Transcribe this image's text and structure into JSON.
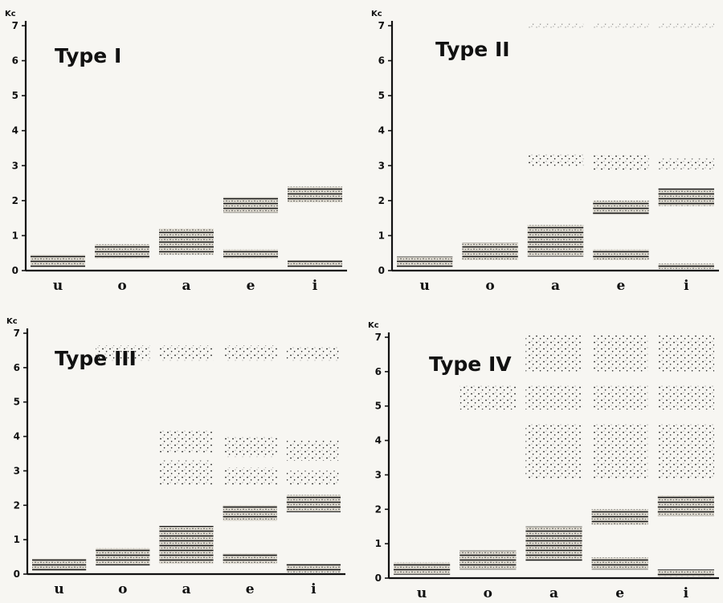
{
  "chart_data": [
    {
      "type": "bar",
      "chart_kind": "floating-range",
      "title": "Type I",
      "unit_label": "Kc",
      "categories": [
        "u",
        "o",
        "a",
        "e",
        "i"
      ],
      "ylim": [
        0,
        7
      ],
      "y_ticks": [
        "0",
        "1",
        "2",
        "3",
        "4",
        "5",
        "6",
        "7"
      ],
      "grid": false,
      "series": [
        {
          "values": [
            [
              0.1,
              0.45
            ],
            [
              0.35,
              0.75
            ],
            [
              0.45,
              1.2
            ],
            [
              0.35,
              0.6
            ],
            [
              0.1,
              0.3
            ]
          ],
          "style": "hatched"
        },
        {
          "values": [
            null,
            null,
            null,
            [
              1.65,
              2.1
            ],
            [
              1.95,
              2.4
            ]
          ],
          "style": "hatched"
        }
      ]
    },
    {
      "type": "bar",
      "chart_kind": "floating-range",
      "title": "Type II",
      "unit_label": "Kc",
      "categories": [
        "u",
        "o",
        "a",
        "e",
        "i"
      ],
      "ylim": [
        0,
        7
      ],
      "y_ticks": [
        "0",
        "1",
        "2",
        "3",
        "4",
        "5",
        "6",
        "7"
      ],
      "grid": false,
      "series": [
        {
          "values": [
            [
              0.1,
              0.4
            ],
            [
              0.3,
              0.8
            ],
            [
              0.4,
              1.3
            ],
            [
              0.3,
              0.6
            ],
            [
              0.05,
              0.2
            ]
          ],
          "style": "hatched"
        },
        {
          "values": [
            null,
            null,
            null,
            [
              1.6,
              2.0
            ],
            [
              1.85,
              2.35
            ]
          ],
          "style": "hatched"
        },
        {
          "values": [
            null,
            null,
            [
              2.95,
              3.35
            ],
            [
              2.85,
              3.3
            ],
            [
              2.9,
              3.2
            ]
          ],
          "style": "dotted"
        },
        {
          "values": [
            null,
            null,
            [
              6.95,
              7.05
            ],
            [
              6.95,
              7.05
            ],
            [
              6.95,
              7.05
            ]
          ],
          "style": "dotted"
        }
      ]
    },
    {
      "type": "bar",
      "chart_kind": "floating-range",
      "title": "Type III",
      "unit_label": "Kc",
      "categories": [
        "u",
        "o",
        "a",
        "e",
        "i"
      ],
      "ylim": [
        0,
        7
      ],
      "y_ticks": [
        "0",
        "1",
        "2",
        "3",
        "4",
        "5",
        "6",
        "7"
      ],
      "grid": false,
      "series": [
        {
          "values": [
            [
              0.1,
              0.45
            ],
            [
              0.25,
              0.75
            ],
            [
              0.3,
              1.4
            ],
            [
              0.3,
              0.6
            ],
            [
              0.05,
              0.3
            ]
          ],
          "style": "hatched"
        },
        {
          "values": [
            null,
            null,
            null,
            [
              1.55,
              2.0
            ],
            [
              1.8,
              2.3
            ]
          ],
          "style": "hatched"
        },
        {
          "values": [
            null,
            null,
            [
              2.6,
              3.3
            ],
            [
              2.6,
              3.1
            ],
            [
              2.6,
              3.0
            ]
          ],
          "style": "dotted"
        },
        {
          "values": [
            null,
            null,
            [
              3.5,
              4.2
            ],
            [
              3.4,
              4.0
            ],
            [
              3.3,
              3.9
            ]
          ],
          "style": "dotted"
        },
        {
          "values": [
            null,
            [
              6.2,
              6.65
            ],
            [
              6.2,
              6.65
            ],
            [
              6.2,
              6.65
            ],
            [
              6.2,
              6.6
            ]
          ],
          "style": "dotted"
        }
      ]
    },
    {
      "type": "bar",
      "chart_kind": "floating-range",
      "title": "Type IV",
      "unit_label": "Kc",
      "categories": [
        "u",
        "o",
        "a",
        "e",
        "i"
      ],
      "ylim": [
        0,
        7
      ],
      "y_ticks": [
        "0",
        "1",
        "2",
        "3",
        "4",
        "5",
        "6",
        "7"
      ],
      "grid": false,
      "series": [
        {
          "values": [
            [
              0.1,
              0.45
            ],
            [
              0.25,
              0.8
            ],
            [
              0.5,
              1.5
            ],
            [
              0.25,
              0.6
            ],
            [
              0.05,
              0.25
            ]
          ],
          "style": "hatched"
        },
        {
          "values": [
            null,
            null,
            null,
            [
              1.55,
              2.0
            ],
            [
              1.8,
              2.4
            ]
          ],
          "style": "hatched"
        },
        {
          "values": [
            null,
            null,
            [
              2.9,
              4.5
            ],
            [
              2.9,
              4.5
            ],
            [
              2.9,
              4.5
            ]
          ],
          "style": "dotted"
        },
        {
          "values": [
            null,
            [
              4.9,
              5.6
            ],
            [
              4.9,
              5.6
            ],
            [
              4.9,
              5.6
            ],
            [
              4.9,
              5.6
            ]
          ],
          "style": "dotted"
        },
        {
          "values": [
            null,
            null,
            [
              6.0,
              7.05
            ],
            [
              6.0,
              7.05
            ],
            [
              6.0,
              7.05
            ]
          ],
          "style": "dotted"
        }
      ]
    }
  ]
}
